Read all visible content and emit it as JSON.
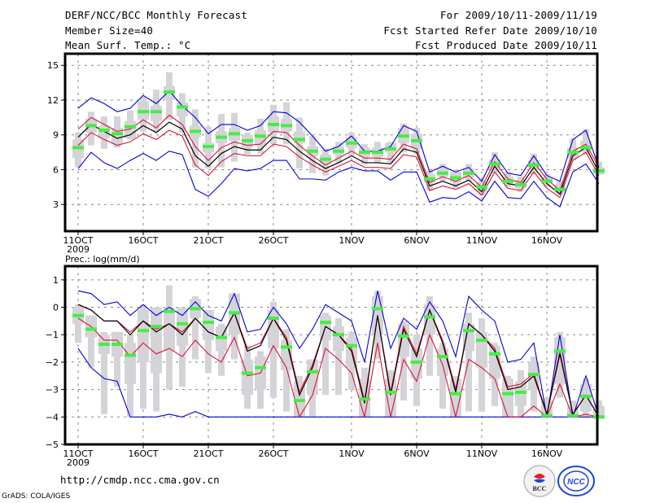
{
  "header": {
    "title": "DERF/NCC/BCC Monthly Forecast",
    "member_size": "Member Size=40",
    "variable": "Mean Surf. Temp.: °C",
    "period": "For 2009/10/11-2009/11/19",
    "started": "Fcst Started Refer Date 2009/10/10",
    "produced": "Fcst Produced Date 2009/10/11"
  },
  "footer": {
    "url": "http://cmdp.ncc.cma.gov.cn",
    "grads": "GrADS: COLA/IGES",
    "logo_bcc": "BCC",
    "logo_ncc": "NCC"
  },
  "colors": {
    "max_min": "#0000dd",
    "spread": "#dd1133",
    "mean": "#000000",
    "median": "#44ee44",
    "box": "#d4d4d8"
  },
  "chart_data": [
    {
      "type": "line",
      "title": "Mean Surf. Temp.: °C",
      "xlabel": "",
      "ylabel": "",
      "x_tick_labels": [
        "11OCT",
        "16OCT",
        "21OCT",
        "26OCT",
        "1NOV",
        "6NOV",
        "11NOV",
        "16NOV"
      ],
      "x_tick_days": [
        0,
        5,
        10,
        15,
        21,
        26,
        31,
        36
      ],
      "year_label": "2009",
      "ylim": [
        0.7,
        16
      ],
      "y_ticks": [
        3,
        6,
        9,
        12,
        15
      ],
      "grid": true,
      "days": 39,
      "series": [
        {
          "name": "max",
          "values": [
            11.3,
            12.2,
            11.7,
            11.0,
            11.3,
            12.4,
            11.7,
            12.8,
            11.5,
            10.5,
            9.1,
            9.9,
            9.9,
            9.4,
            9.8,
            11.0,
            10.9,
            10.1,
            8.9,
            7.6,
            8.0,
            8.9,
            7.6,
            7.6,
            8.0,
            9.8,
            9.3,
            5.8,
            6.3,
            5.8,
            6.2,
            5.0,
            7.3,
            5.7,
            5.5,
            7.2,
            5.5,
            5.0,
            8.6,
            9.4,
            6.2
          ]
        },
        {
          "name": "plus_sigma",
          "values": [
            9.5,
            10.5,
            9.9,
            9.3,
            9.5,
            10.3,
            9.6,
            10.7,
            9.9,
            8.0,
            6.8,
            7.9,
            8.4,
            8.1,
            8.2,
            9.3,
            9.2,
            8.1,
            7.2,
            6.4,
            7.0,
            7.6,
            7.0,
            7.0,
            6.9,
            8.2,
            7.8,
            4.9,
            5.4,
            5.0,
            5.5,
            4.5,
            6.7,
            5.2,
            4.9,
            6.6,
            5.2,
            4.2,
            7.6,
            8.2,
            6.2
          ]
        },
        {
          "name": "mean",
          "values": [
            8.8,
            9.9,
            9.3,
            8.7,
            9.0,
            9.8,
            9.2,
            10.1,
            9.5,
            7.2,
            6.3,
            7.4,
            8.0,
            7.7,
            7.7,
            8.8,
            8.6,
            7.6,
            6.8,
            6.1,
            6.6,
            7.2,
            6.6,
            6.6,
            6.5,
            7.8,
            7.5,
            4.6,
            5.0,
            4.6,
            5.1,
            4.1,
            6.3,
            4.8,
            4.6,
            6.2,
            4.8,
            3.9,
            7.2,
            7.9,
            5.8
          ]
        },
        {
          "name": "minus_sigma",
          "values": [
            8.1,
            9.2,
            8.6,
            8.1,
            8.4,
            9.1,
            8.6,
            9.4,
            8.9,
            6.4,
            5.5,
            6.7,
            7.4,
            7.2,
            7.2,
            8.2,
            8.0,
            7.1,
            6.4,
            5.8,
            6.3,
            6.8,
            6.2,
            6.2,
            6.1,
            7.3,
            7.1,
            4.2,
            4.6,
            4.3,
            4.8,
            3.8,
            5.8,
            4.4,
            4.2,
            5.8,
            4.4,
            3.6,
            6.8,
            7.5,
            5.5
          ]
        },
        {
          "name": "min",
          "values": [
            6.1,
            7.5,
            6.6,
            6.1,
            6.8,
            7.4,
            6.8,
            7.6,
            7.3,
            4.3,
            3.7,
            4.8,
            6.1,
            5.9,
            6.1,
            6.8,
            6.8,
            5.2,
            5.2,
            5.1,
            5.8,
            6.2,
            5.9,
            5.9,
            5.1,
            5.8,
            5.8,
            3.2,
            3.6,
            3.5,
            4.1,
            3.3,
            5.0,
            3.6,
            3.5,
            5.0,
            3.6,
            2.8,
            5.8,
            6.5,
            4.8
          ]
        },
        {
          "name": "median",
          "values": [
            7.9,
            9.8,
            9.4,
            9.1,
            9.7,
            11.0,
            11.0,
            12.7,
            11.4,
            9.3,
            8.0,
            8.8,
            9.1,
            8.5,
            8.9,
            9.9,
            9.8,
            8.6,
            7.6,
            6.9,
            7.6,
            8.3,
            7.5,
            7.5,
            7.8,
            8.9,
            8.5,
            5.2,
            5.7,
            5.3,
            5.7,
            4.5,
            6.5,
            5.0,
            4.7,
            6.4,
            5.0,
            4.3,
            7.5,
            7.9,
            5.9
          ]
        },
        {
          "name": "box_q1",
          "values": [
            7.0,
            9.2,
            8.7,
            8.2,
            8.7,
            10.3,
            10.2,
            12.0,
            10.6,
            8.8,
            7.5,
            8.3,
            8.5,
            7.9,
            8.1,
            9.2,
            9.3,
            8.3,
            7.2,
            6.5,
            7.3,
            7.9,
            7.1,
            7.1,
            7.5,
            8.3,
            7.8,
            4.9,
            5.4,
            4.9,
            5.3,
            4.1,
            6.0,
            4.8,
            4.4,
            6.0,
            4.8,
            4.0,
            7.0,
            7.6,
            5.6
          ]
        },
        {
          "name": "box_q3",
          "values": [
            8.6,
            10.4,
            9.8,
            9.6,
            10.2,
            11.9,
            11.5,
            13.2,
            11.8,
            9.8,
            8.3,
            9.3,
            9.6,
            9.0,
            9.4,
            10.6,
            10.4,
            9.3,
            8.0,
            7.3,
            8.0,
            8.8,
            7.9,
            7.9,
            8.3,
            9.6,
            9.1,
            5.6,
            6.1,
            5.8,
            6.1,
            4.9,
            6.9,
            5.4,
            5.1,
            6.8,
            5.3,
            4.7,
            7.9,
            8.5,
            6.2
          ]
        },
        {
          "name": "box_low",
          "values": [
            6.2,
            8.1,
            7.8,
            7.9,
            8.6,
            9.3,
            9.3,
            10.3,
            9.2,
            6.2,
            6.1,
            6.2,
            6.7,
            7.3,
            7.4,
            8.2,
            8.2,
            6.1,
            5.7,
            5.5,
            6.6,
            7.2,
            6.5,
            6.6,
            6.6,
            7.5,
            7.4,
            4.2,
            5.0,
            4.4,
            5.0,
            3.8,
            5.7,
            4.5,
            4.1,
            5.6,
            4.5,
            3.8,
            6.8,
            7.3,
            5.6
          ]
        },
        {
          "name": "box_high",
          "values": [
            9.2,
            11.0,
            10.6,
            10.6,
            11.1,
            12.3,
            12.9,
            14.4,
            12.6,
            11.2,
            9.7,
            10.8,
            10.9,
            9.2,
            10.4,
            11.6,
            11.8,
            10.5,
            8.9,
            7.8,
            8.4,
            9.2,
            8.2,
            8.4,
            8.4,
            10.0,
            9.6,
            5.9,
            6.5,
            6.0,
            6.5,
            5.1,
            7.5,
            5.8,
            5.4,
            7.4,
            5.6,
            5.0,
            8.7,
            9.5,
            6.7
          ]
        }
      ]
    },
    {
      "type": "line",
      "title": "Prec.: log(mm/d)",
      "xlabel": "",
      "ylabel": "",
      "x_tick_labels": [
        "11OCT",
        "16OCT",
        "21OCT",
        "26OCT",
        "1NOV",
        "6NOV",
        "11NOV",
        "16NOV"
      ],
      "x_tick_days": [
        0,
        5,
        10,
        15,
        21,
        26,
        31,
        36
      ],
      "year_label": "2009",
      "ylim": [
        -5,
        1.5
      ],
      "y_ticks": [
        -5,
        -4,
        -3,
        -2,
        -1,
        0,
        1
      ],
      "grid": true,
      "days": 39,
      "series": [
        {
          "name": "max",
          "values": [
            0.6,
            0.5,
            0.1,
            0.2,
            -0.3,
            0.1,
            -0.3,
            0.0,
            -0.3,
            0.2,
            -0.3,
            -0.5,
            0.5,
            -0.9,
            -0.8,
            0.0,
            -0.6,
            -1.5,
            -0.8,
            0.1,
            -0.2,
            -0.5,
            -2.0,
            0.6,
            -1.5,
            -0.4,
            -0.8,
            0.2,
            -0.5,
            -1.8,
            0.4,
            -0.1,
            -0.5,
            -2.0,
            -1.9,
            -1.3,
            -4.0,
            -1.0,
            -4.0,
            -2.5,
            -4.0
          ]
        },
        {
          "name": "plus_sigma",
          "values": [
            0.1,
            -0.1,
            -0.5,
            -0.5,
            -0.9,
            -0.5,
            -0.8,
            -0.6,
            -0.9,
            -0.4,
            -0.9,
            -1.1,
            -0.2,
            -1.5,
            -1.3,
            -0.4,
            -1.1,
            -3.1,
            -2.1,
            -0.7,
            -1.0,
            -1.5,
            -3.4,
            -0.3,
            -3.1,
            -0.7,
            -1.7,
            -0.1,
            -1.2,
            -3.0,
            -0.6,
            -1.0,
            -1.5,
            -2.9,
            -2.8,
            -2.4,
            -3.9,
            -1.6,
            -3.9,
            -3.2,
            -4.0
          ]
        },
        {
          "name": "mean",
          "values": [
            0.1,
            -0.1,
            -0.5,
            -0.5,
            -1.0,
            -0.5,
            -0.9,
            -0.6,
            -1.0,
            -0.4,
            -0.9,
            -1.1,
            -0.2,
            -1.6,
            -1.4,
            -0.4,
            -1.2,
            -3.2,
            -2.2,
            -0.7,
            -1.0,
            -1.6,
            -3.5,
            -0.3,
            -3.2,
            -0.8,
            -1.8,
            -0.1,
            -1.3,
            -3.1,
            -0.6,
            -1.0,
            -1.6,
            -3.0,
            -2.9,
            -2.5,
            -3.9,
            -1.7,
            -3.9,
            -3.2,
            -4.0
          ]
        },
        {
          "name": "minus_sigma",
          "values": [
            -0.4,
            -0.7,
            -1.2,
            -1.2,
            -1.8,
            -1.3,
            -1.7,
            -1.5,
            -1.8,
            -1.2,
            -1.7,
            -2.0,
            -1.1,
            -2.5,
            -2.4,
            -1.4,
            -2.2,
            -4.0,
            -3.2,
            -1.5,
            -1.9,
            -2.4,
            -4.0,
            -1.3,
            -4.0,
            -1.9,
            -2.7,
            -1.0,
            -2.1,
            -4.0,
            -1.9,
            -2.2,
            -2.6,
            -4.0,
            -4.0,
            -3.6,
            -4.0,
            -2.8,
            -4.0,
            -3.9,
            -4.0
          ]
        },
        {
          "name": "min",
          "values": [
            -1.5,
            -2.2,
            -2.6,
            -2.7,
            -4.0,
            -4.0,
            -4.0,
            -3.9,
            -4.0,
            -3.8,
            -4.0,
            -4.0,
            -4.0,
            -4.0,
            -4.0,
            -4.0,
            -4.0,
            -4.0,
            -4.0,
            -4.0,
            -4.0,
            -4.0,
            -4.0,
            -4.0,
            -4.0,
            -4.0,
            -4.0,
            -4.0,
            -4.0,
            -4.0,
            -4.0,
            -4.0,
            -4.0,
            -4.0,
            -4.0,
            -4.0,
            -4.0,
            -4.0,
            -4.0,
            -4.0,
            -4.0
          ]
        },
        {
          "name": "median",
          "values": [
            -0.3,
            -0.8,
            -1.35,
            -1.35,
            -1.75,
            -0.85,
            -0.7,
            -0.15,
            -0.6,
            -0.05,
            -0.55,
            -1.1,
            -0.2,
            -2.4,
            -2.2,
            -0.4,
            -1.45,
            -3.4,
            -2.35,
            -0.55,
            -1.0,
            -1.4,
            -3.35,
            -0.05,
            -3.1,
            -1.05,
            -2.0,
            -0.35,
            -1.8,
            -3.15,
            -0.85,
            -1.2,
            -1.7,
            -3.15,
            -3.1,
            -2.45,
            -3.95,
            -1.6,
            -3.95,
            -3.25,
            -4.0
          ]
        },
        {
          "name": "box_q1",
          "values": [
            -0.6,
            -1.1,
            -1.7,
            -1.8,
            -2.8,
            -2.0,
            -2.4,
            -1.6,
            -1.4,
            -0.4,
            -1.2,
            -1.6,
            -1.0,
            -3.2,
            -3.0,
            -1.5,
            -2.3,
            -4.0,
            -3.2,
            -1.2,
            -1.6,
            -2.2,
            -4.0,
            -1.0,
            -4.0,
            -1.8,
            -2.6,
            -1.0,
            -2.5,
            -4.0,
            -1.6,
            -2.2,
            -2.6,
            -4.0,
            -3.6,
            -3.0,
            -4.0,
            -2.8,
            -4.0,
            -3.8,
            -4.0
          ]
        },
        {
          "name": "box_q3",
          "values": [
            0.0,
            -0.3,
            -1.0,
            -0.9,
            -1.3,
            -0.1,
            0.0,
            0.0,
            0.0,
            0.3,
            -0.1,
            -0.7,
            0.5,
            -1.9,
            -1.8,
            -0.1,
            -1.2,
            -2.7,
            -1.9,
            -0.3,
            -0.7,
            -1.1,
            -2.6,
            0.4,
            -2.6,
            -0.6,
            -1.5,
            0.1,
            -1.5,
            -2.6,
            -0.6,
            -0.9,
            -1.4,
            -2.6,
            -2.7,
            -2.0,
            -3.4,
            -1.1,
            -3.6,
            -2.8,
            -3.6
          ]
        },
        {
          "name": "box_low",
          "values": [
            -1.3,
            -2.2,
            -3.9,
            -2.9,
            -4.0,
            -3.7,
            -3.8,
            -3.0,
            -2.9,
            -1.9,
            -2.4,
            -2.5,
            -1.9,
            -3.7,
            -3.7,
            -3.3,
            -3.8,
            -4.0,
            -4.0,
            -3.2,
            -3.2,
            -3.0,
            -4.0,
            -1.9,
            -4.0,
            -3.4,
            -3.6,
            -2.5,
            -3.7,
            -4.0,
            -3.8,
            -3.8,
            -3.6,
            -4.0,
            -4.0,
            -3.8,
            -4.0,
            -3.3,
            -4.0,
            -4.0,
            -4.0
          ]
        },
        {
          "name": "box_high",
          "values": [
            0.1,
            -0.3,
            -0.9,
            -0.9,
            -1.0,
            0.1,
            0.0,
            0.8,
            -0.1,
            0.4,
            -0.1,
            -0.6,
            0.5,
            -1.4,
            -1.6,
            0.2,
            -0.8,
            -2.5,
            -1.9,
            -0.2,
            -0.4,
            -0.9,
            -2.2,
            0.6,
            -2.3,
            -0.5,
            -1.0,
            0.4,
            -1.3,
            -2.5,
            -0.2,
            -0.4,
            -1.3,
            -2.5,
            -2.3,
            -1.8,
            -3.3,
            -0.9,
            -3.4,
            -2.6,
            -3.4
          ]
        }
      ]
    }
  ]
}
